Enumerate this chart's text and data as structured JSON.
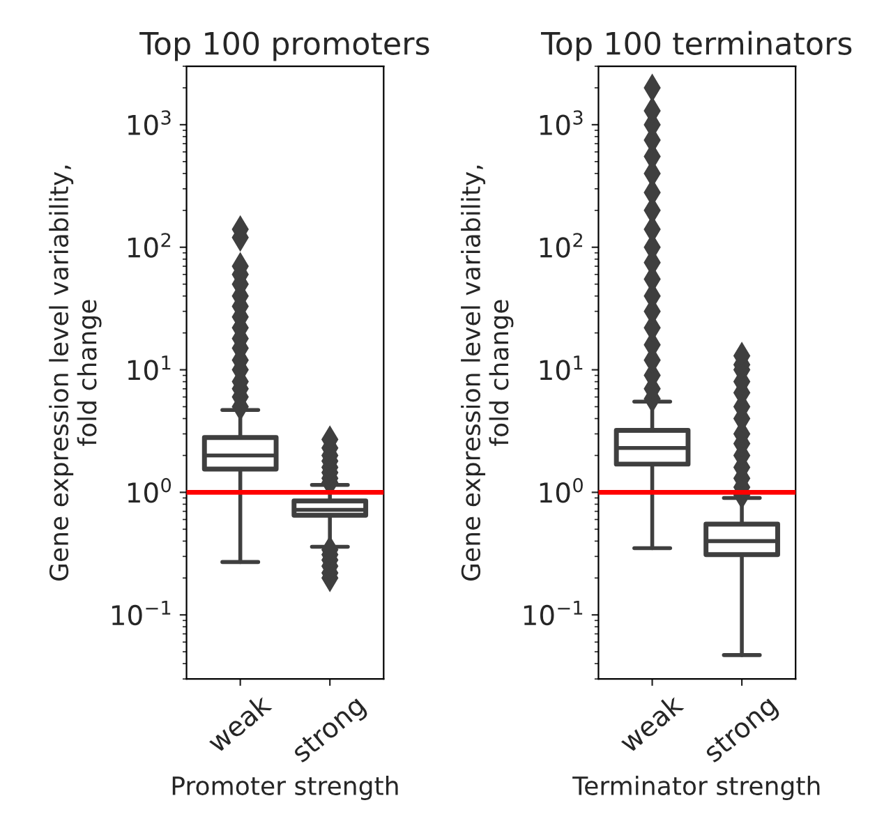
{
  "chart_data": [
    {
      "type": "box",
      "title": "Top 100 promoters",
      "xlabel": "Promoter strength",
      "ylabel": "Gene expression level variability,\nfold change",
      "categories": [
        "weak",
        "strong"
      ],
      "log": "y",
      "grid": false,
      "color": "#3f3f3f",
      "boxes": [
        {
          "low": 0.27,
          "q1": 1.55,
          "median": 2.0,
          "q3": 2.8,
          "high": 4.7,
          "outliers": [
            5,
            6,
            7,
            8,
            10,
            12,
            15,
            18,
            22,
            27,
            33,
            40,
            50,
            60,
            70,
            120,
            140
          ]
        },
        {
          "low": 0.36,
          "q1": 0.65,
          "median": 0.72,
          "q3": 0.85,
          "high": 1.15,
          "outliers": [
            0.2,
            0.22,
            0.25,
            0.28,
            0.31,
            0.34,
            1.2,
            1.3,
            1.45,
            1.6,
            1.8,
            2.0,
            2.3,
            2.7
          ]
        }
      ],
      "ylim": [
        0.03,
        3000
      ],
      "yticks": [
        {
          "value": 0.1,
          "label": "10$^{−1}$"
        },
        {
          "value": 1,
          "label": "10$^{0}$"
        },
        {
          "value": 10,
          "label": "10$^{1}$"
        },
        {
          "value": 100,
          "label": "10$^{2}$"
        },
        {
          "value": 1000,
          "label": "10$^{3}$"
        }
      ],
      "ref_lines": [
        {
          "axis": "y",
          "value": 1,
          "color": "#ff0000"
        }
      ]
    },
    {
      "type": "box",
      "title": "Top 100 terminators",
      "xlabel": "Terminator strength",
      "ylabel": "Gene expression level variability,\nfold change",
      "categories": [
        "weak",
        "strong"
      ],
      "log": "y",
      "grid": false,
      "color": "#3f3f3f",
      "boxes": [
        {
          "low": 0.35,
          "q1": 1.7,
          "median": 2.3,
          "q3": 3.2,
          "high": 5.5,
          "outliers": [
            5.8,
            7,
            9,
            12,
            16,
            22,
            30,
            40,
            55,
            75,
            100,
            140,
            200,
            280,
            400,
            550,
            750,
            1000,
            1300,
            2000
          ]
        },
        {
          "low": 0.047,
          "q1": 0.31,
          "median": 0.4,
          "q3": 0.55,
          "high": 0.9,
          "outliers": [
            0.95,
            1.1,
            1.3,
            1.6,
            2,
            2.5,
            3,
            4,
            5,
            6.5,
            8,
            10,
            11,
            13
          ]
        }
      ],
      "ylim": [
        0.03,
        3000
      ],
      "yticks": [
        {
          "value": 0.1,
          "label": "10$^{−1}$"
        },
        {
          "value": 1,
          "label": "10$^{0}$"
        },
        {
          "value": 10,
          "label": "10$^{1}$"
        },
        {
          "value": 100,
          "label": "10$^{2}$"
        },
        {
          "value": 1000,
          "label": "10$^{3}$"
        }
      ],
      "ref_lines": [
        {
          "axis": "y",
          "value": 1,
          "color": "#ff0000"
        }
      ]
    }
  ]
}
